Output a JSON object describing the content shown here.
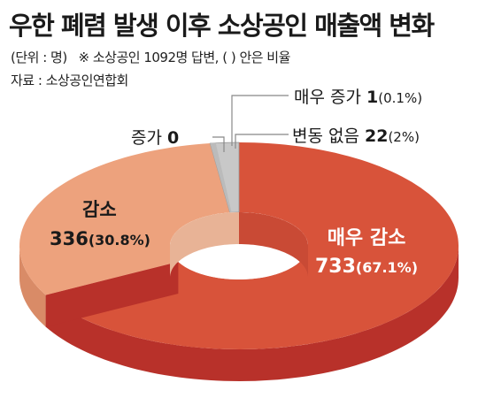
{
  "title": "우한 폐렴 발생 이후 소상공인 매출액 변화",
  "notes": {
    "unit": "(단위 : 명)",
    "respondents": "※ 소상공인 1092명 답변, ( ) 안은 비율",
    "source": "자료 : 소상공인연합회"
  },
  "chart_data": {
    "type": "pie",
    "style": "3d-donut",
    "slices": [
      {
        "name": "매우 감소",
        "value": 733,
        "percent": "(67.1%)",
        "value_label": "733",
        "color": "#d8533a",
        "side_color": "#b8312a"
      },
      {
        "name": "감소",
        "value": 336,
        "percent": "(30.8%)",
        "value_label": "336",
        "color": "#eda27d",
        "side_color": "#d98b67"
      },
      {
        "name": "증가",
        "value": 0,
        "percent": "",
        "value_label": "0",
        "color": "#f4c3a6",
        "side_color": "#f4c3a6"
      },
      {
        "name": "매우 증가",
        "value": 1,
        "percent": "(0.1%)",
        "value_label": "1",
        "color": "#bbbbbb",
        "side_color": "#999999"
      },
      {
        "name": "변동 없음",
        "value": 22,
        "percent": "(2%)",
        "value_label": "22",
        "color": "#c8c8c8",
        "side_color": "#a8a8a8"
      }
    ]
  }
}
